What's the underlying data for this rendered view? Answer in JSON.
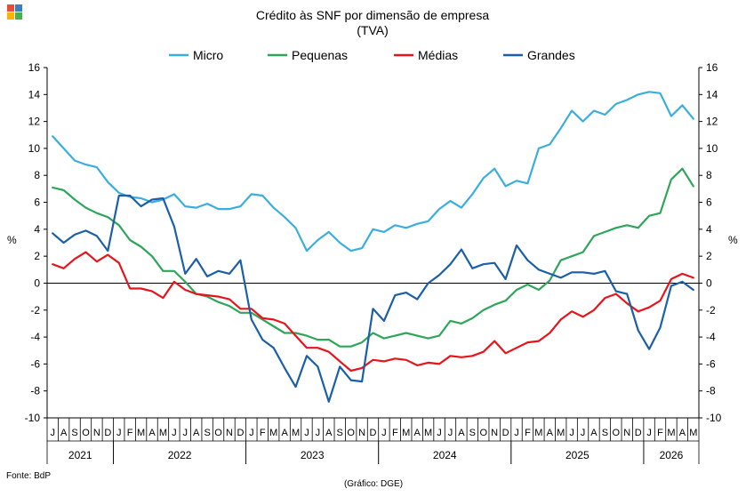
{
  "title": "Crédito às SNF por dimensão de empresa",
  "subtitle": "(TVA)",
  "source": "Fonte: BdP",
  "graphic_credit": "(Gráfico: DGE)",
  "colors": {
    "logo": [
      "#e84b3c",
      "#f7b500",
      "#3c7fc1",
      "#4caf50"
    ]
  },
  "chart_data": {
    "type": "line",
    "ylabel_left": "%",
    "ylabel_right": "%",
    "ylim": [
      -10,
      16
    ],
    "yticks": [
      -10,
      -8,
      -6,
      -4,
      -2,
      0,
      2,
      4,
      6,
      8,
      10,
      12,
      14,
      16
    ],
    "grid": false,
    "legend_position": "top",
    "x_month_labels": [
      "J",
      "A",
      "S",
      "O",
      "N",
      "D",
      "J",
      "F",
      "M",
      "A",
      "M",
      "J",
      "J",
      "A",
      "S",
      "O",
      "N",
      "D",
      "J",
      "F",
      "M",
      "A",
      "M",
      "J",
      "J",
      "A",
      "S",
      "O",
      "N",
      "D",
      "J",
      "F",
      "M",
      "A",
      "M",
      "J",
      "J",
      "A",
      "S",
      "O",
      "N",
      "D",
      "J",
      "F",
      "M",
      "A",
      "M",
      "J",
      "J",
      "A",
      "S",
      "O",
      "N",
      "D",
      "J",
      "F",
      "M",
      "A",
      "M"
    ],
    "years": [
      {
        "label": "2021",
        "start": 0,
        "end": 5
      },
      {
        "label": "2022",
        "start": 6,
        "end": 17
      },
      {
        "label": "2023",
        "start": 18,
        "end": 29
      },
      {
        "label": "2024",
        "start": 30,
        "end": 41
      },
      {
        "label": "2025",
        "start": 42,
        "end": 53
      },
      {
        "label": "2026",
        "start": 54,
        "end": 58
      }
    ],
    "series": [
      {
        "name": "Micro",
        "color": "#3aaee0",
        "values": [
          10.9,
          10.0,
          9.1,
          8.8,
          8.6,
          7.5,
          6.7,
          6.4,
          6.3,
          6.0,
          6.2,
          6.6,
          5.7,
          5.6,
          5.9,
          5.5,
          5.5,
          5.7,
          6.6,
          6.5,
          5.6,
          4.9,
          4.1,
          2.4,
          3.2,
          3.8,
          3.0,
          2.4,
          2.6,
          4.0,
          3.8,
          4.3,
          4.1,
          4.4,
          4.6,
          5.5,
          6.1,
          5.6,
          6.6,
          7.8,
          8.5,
          7.2,
          7.6,
          7.4,
          10.0,
          10.3,
          11.5,
          12.8,
          12.0,
          12.8,
          12.5,
          13.3,
          13.6,
          14.0,
          14.2,
          14.1,
          12.4,
          13.2,
          12.2
        ]
      },
      {
        "name": "Pequenas",
        "color": "#2ea65a",
        "values": [
          7.1,
          6.9,
          6.2,
          5.6,
          5.2,
          4.9,
          4.3,
          3.2,
          2.7,
          2.0,
          0.9,
          0.9,
          0.1,
          -0.8,
          -1.0,
          -1.4,
          -1.7,
          -2.2,
          -2.2,
          -2.7,
          -3.2,
          -3.7,
          -3.7,
          -3.9,
          -4.2,
          -4.2,
          -4.7,
          -4.7,
          -4.4,
          -3.7,
          -4.1,
          -3.9,
          -3.7,
          -3.9,
          -4.1,
          -3.9,
          -2.8,
          -3.0,
          -2.6,
          -2.0,
          -1.6,
          -1.3,
          -0.5,
          -0.1,
          -0.5,
          0.2,
          1.7,
          2.0,
          2.3,
          3.5,
          3.8,
          4.1,
          4.3,
          4.1,
          5.0,
          5.2,
          7.7,
          8.5,
          7.2
        ]
      },
      {
        "name": "Médias",
        "color": "#e8141b",
        "values": [
          1.4,
          1.1,
          1.8,
          2.3,
          1.6,
          2.1,
          1.5,
          -0.4,
          -0.4,
          -0.6,
          -1.1,
          0.1,
          -0.5,
          -0.8,
          -0.9,
          -1.0,
          -1.2,
          -1.9,
          -1.9,
          -2.6,
          -2.7,
          -3.0,
          -3.9,
          -4.8,
          -4.8,
          -5.1,
          -5.8,
          -6.5,
          -6.3,
          -5.7,
          -5.8,
          -5.6,
          -5.7,
          -6.1,
          -5.9,
          -6.0,
          -5.4,
          -5.5,
          -5.4,
          -5.1,
          -4.3,
          -5.2,
          -4.8,
          -4.4,
          -4.3,
          -3.7,
          -2.7,
          -2.1,
          -2.5,
          -2.0,
          -1.1,
          -0.8,
          -1.5,
          -2.1,
          -1.8,
          -1.3,
          0.3,
          0.7,
          0.4
        ]
      },
      {
        "name": "Grandes",
        "color": "#1a5fa8",
        "values": [
          3.7,
          3.0,
          3.6,
          3.9,
          3.5,
          2.4,
          6.5,
          6.5,
          5.7,
          6.2,
          6.3,
          4.2,
          0.7,
          1.8,
          0.5,
          0.9,
          0.7,
          1.7,
          -2.7,
          -4.2,
          -4.8,
          -6.3,
          -7.7,
          -5.4,
          -6.2,
          -8.8,
          -6.2,
          -7.2,
          -7.3,
          -1.9,
          -2.8,
          -0.9,
          -0.7,
          -1.2,
          0.0,
          0.6,
          1.4,
          2.5,
          1.1,
          1.4,
          1.5,
          0.3,
          2.8,
          1.7,
          1.0,
          0.7,
          0.4,
          0.8,
          0.8,
          0.7,
          0.9,
          -0.6,
          -0.8,
          -3.5,
          -4.9,
          -3.3,
          -0.2,
          0.1,
          -0.5
        ]
      }
    ]
  }
}
